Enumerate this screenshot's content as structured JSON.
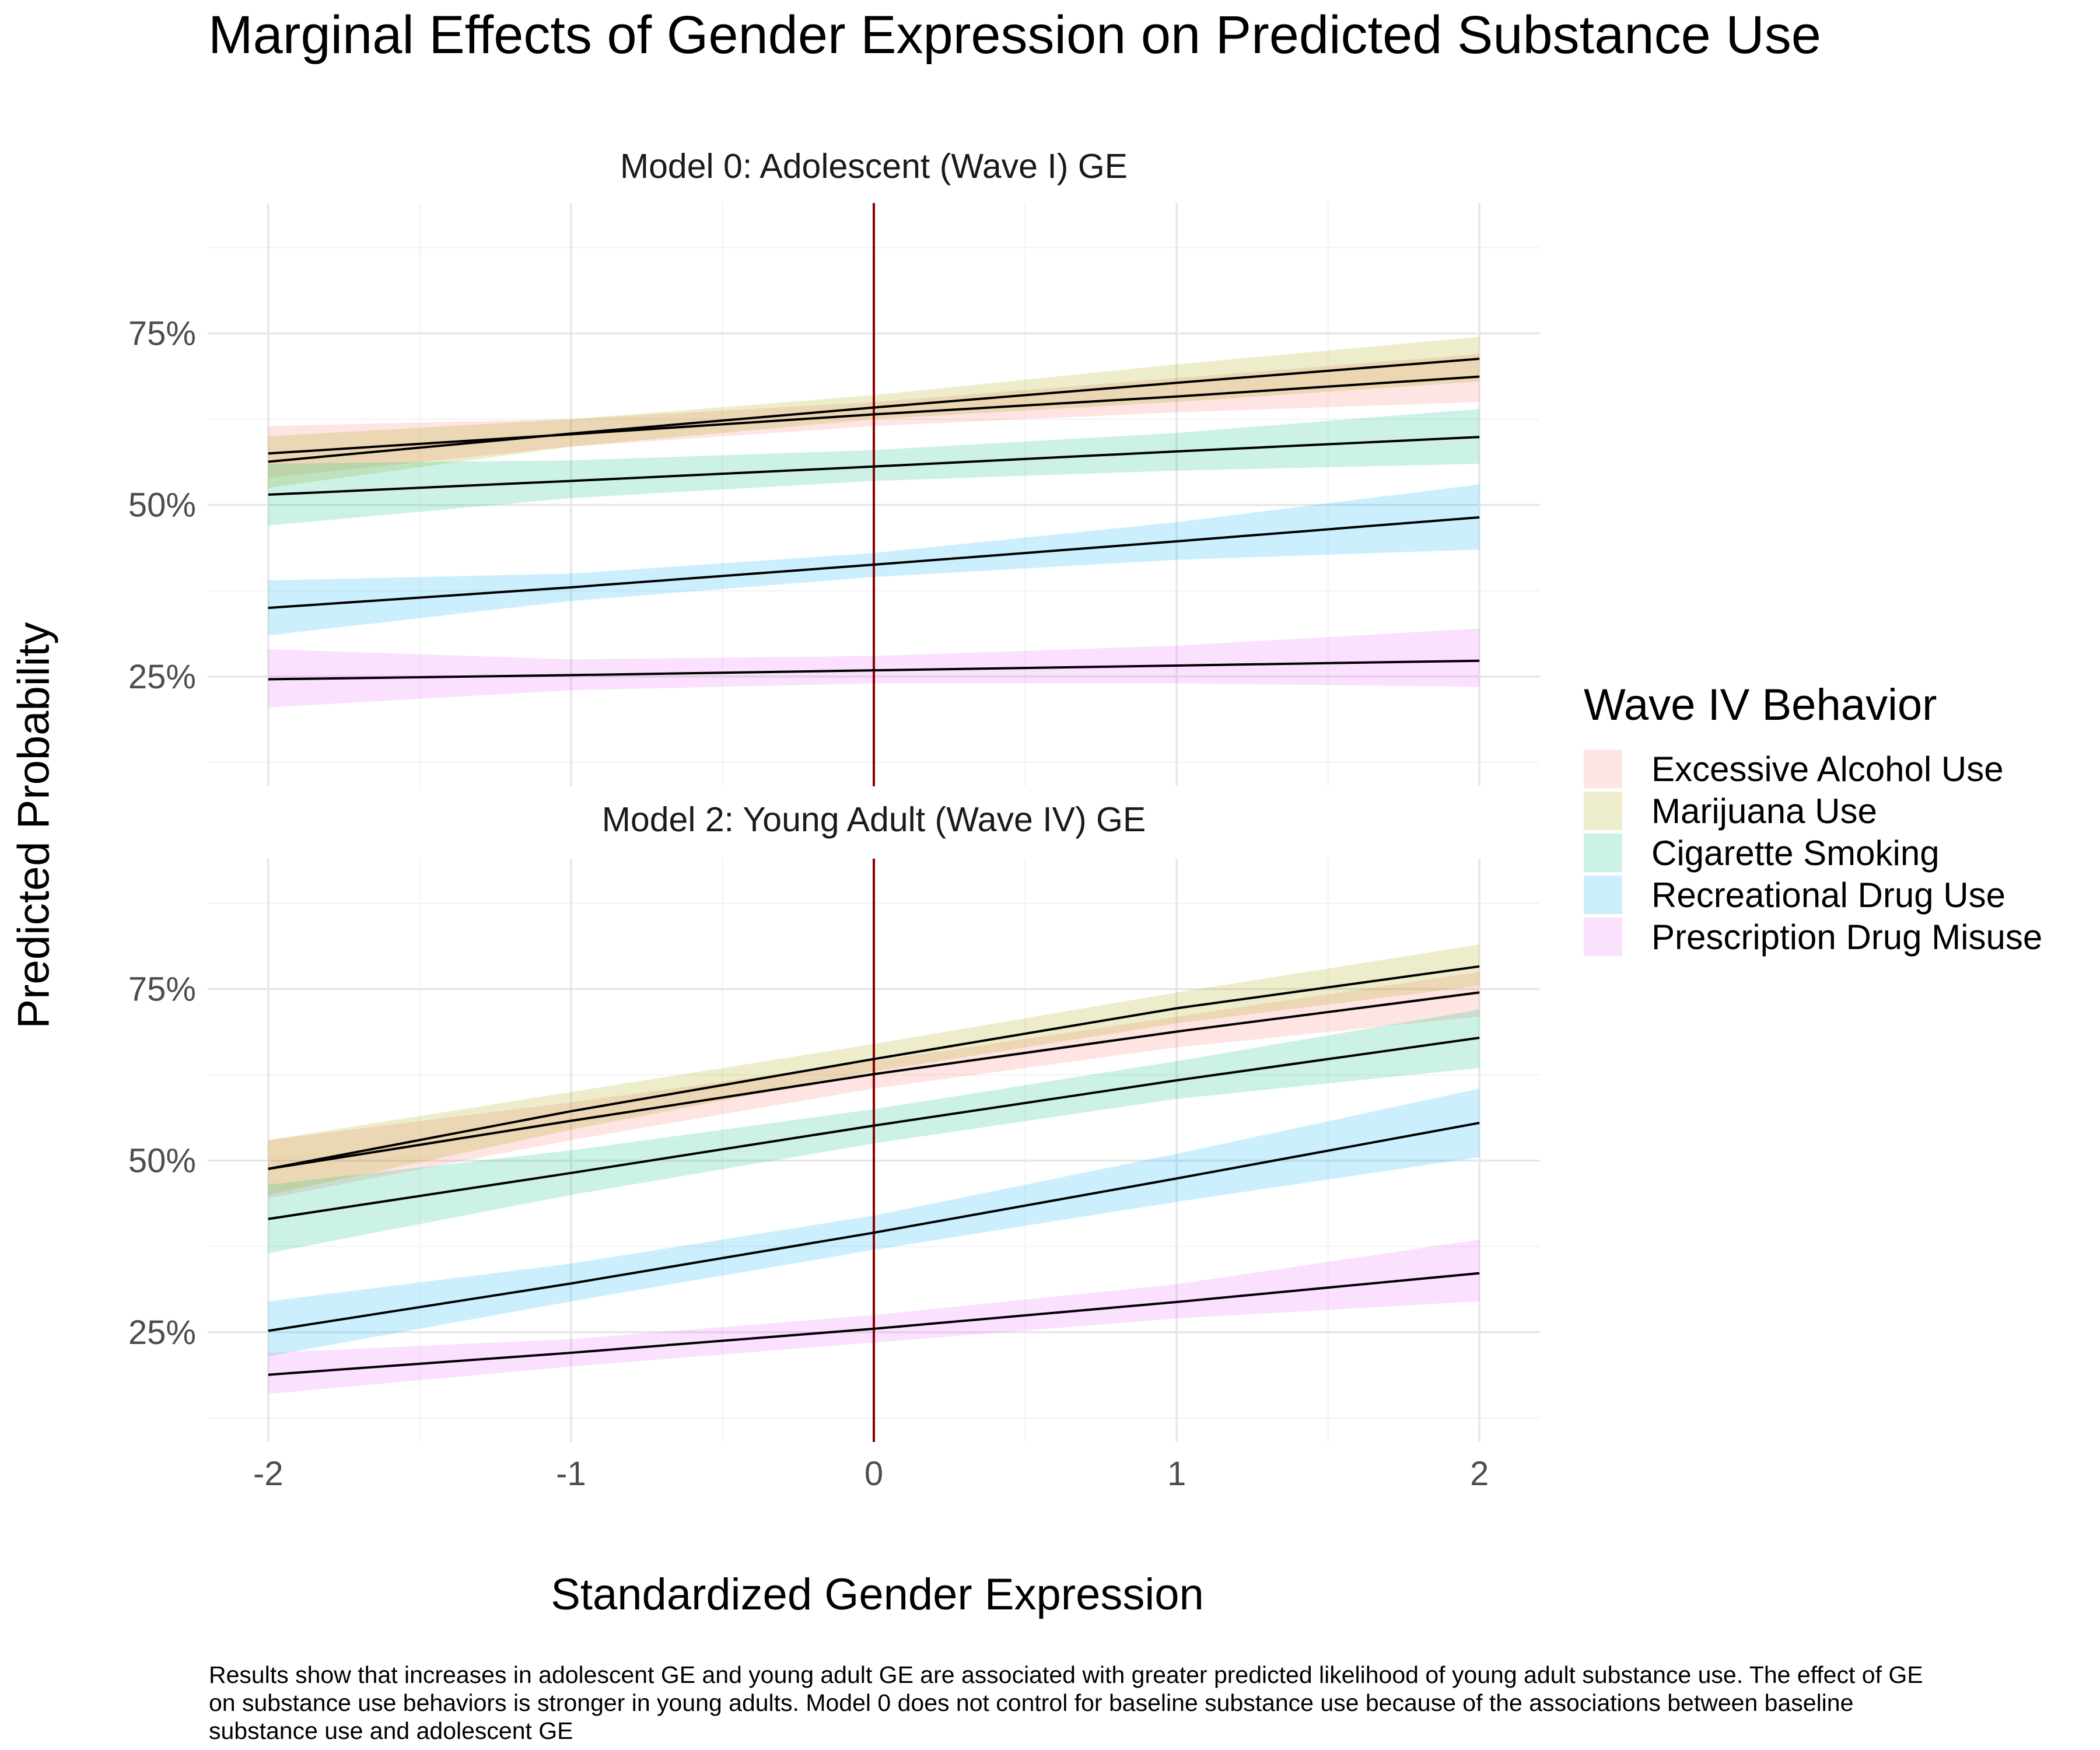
{
  "chart_data": {
    "type": "line",
    "title": "Marginal Effects of Gender Expression on Predicted Substance Use",
    "xlabel": "Standardized Gender Expression",
    "ylabel": "Predicted Probability",
    "xlim": [
      -2.2,
      2.2
    ],
    "ylim": [
      0.09,
      0.94
    ],
    "x_ticks": [
      -2,
      -1,
      0,
      1,
      2
    ],
    "x_tick_labels": [
      "-2",
      "-1",
      "0",
      "1",
      "2"
    ],
    "y_ticks": [
      0.25,
      0.5,
      0.75
    ],
    "y_tick_labels": [
      "25%",
      "50%",
      "75%"
    ],
    "reference_line_x": 0,
    "reference_line_color": "#8b0000",
    "grid": true,
    "legend_title": "Wave IV Behavior",
    "legend_position": "right",
    "caption": "Results show that increases in adolescent GE and young adult GE are associated with greater predicted likelihood of young adult substance use. The effect of GE on substance use behaviors is stronger in young adults. Model 0 does not control for baseline substance use because of the associations between baseline substance use and adolescent GE",
    "behaviors": [
      {
        "name": "Excessive Alcohol Use",
        "color": "#f8766d"
      },
      {
        "name": "Marijuana Use",
        "color": "#a3a500"
      },
      {
        "name": "Cigarette Smoking",
        "color": "#00bf7d"
      },
      {
        "name": "Recreational Drug Use",
        "color": "#00b0f6"
      },
      {
        "name": "Prescription Drug Misuse",
        "color": "#e76bf3"
      }
    ],
    "panels": [
      {
        "title": "Model 0: Adolescent (Wave I) GE",
        "x": [
          -2,
          -1,
          0,
          1,
          2
        ],
        "series": [
          {
            "name": "Excessive Alcohol Use",
            "values": [
              0.575,
              0.603,
              0.632,
              0.658,
              0.687
            ],
            "lower": [
              0.54,
              0.585,
              0.615,
              0.635,
              0.65
            ],
            "upper": [
              0.615,
              0.625,
              0.65,
              0.685,
              0.72
            ]
          },
          {
            "name": "Marijuana Use",
            "values": [
              0.563,
              0.604,
              0.642,
              0.678,
              0.713
            ],
            "lower": [
              0.525,
              0.585,
              0.625,
              0.65,
              0.68
            ],
            "upper": [
              0.6,
              0.625,
              0.66,
              0.705,
              0.745
            ]
          },
          {
            "name": "Cigarette Smoking",
            "values": [
              0.515,
              0.535,
              0.556,
              0.578,
              0.599
            ],
            "lower": [
              0.47,
              0.51,
              0.535,
              0.55,
              0.56
            ],
            "upper": [
              0.56,
              0.565,
              0.58,
              0.605,
              0.64
            ]
          },
          {
            "name": "Recreational Drug Use",
            "values": [
              0.35,
              0.38,
              0.413,
              0.447,
              0.482
            ],
            "lower": [
              0.31,
              0.36,
              0.395,
              0.42,
              0.435
            ],
            "upper": [
              0.39,
              0.4,
              0.43,
              0.475,
              0.53
            ]
          },
          {
            "name": "Prescription Drug Misuse",
            "values": [
              0.246,
              0.252,
              0.259,
              0.266,
              0.273
            ],
            "lower": [
              0.205,
              0.23,
              0.24,
              0.24,
              0.235
            ],
            "upper": [
              0.29,
              0.275,
              0.28,
              0.295,
              0.32
            ]
          }
        ]
      },
      {
        "title": "Model 2: Young Adult (Wave IV) GE",
        "x": [
          -2,
          -1,
          0,
          1,
          2
        ],
        "series": [
          {
            "name": "Excessive Alcohol Use",
            "values": [
              0.488,
              0.558,
              0.626,
              0.688,
              0.745
            ],
            "lower": [
              0.445,
              0.53,
              0.605,
              0.665,
              0.71
            ],
            "upper": [
              0.53,
              0.585,
              0.645,
              0.71,
              0.775
            ]
          },
          {
            "name": "Marijuana Use",
            "values": [
              0.488,
              0.572,
              0.648,
              0.722,
              0.783
            ],
            "lower": [
              0.45,
              0.545,
              0.63,
              0.7,
              0.755
            ],
            "upper": [
              0.53,
              0.6,
              0.67,
              0.745,
              0.815
            ]
          },
          {
            "name": "Cigarette Smoking",
            "values": [
              0.415,
              0.482,
              0.551,
              0.617,
              0.679
            ],
            "lower": [
              0.365,
              0.45,
              0.525,
              0.59,
              0.635
            ],
            "upper": [
              0.465,
              0.515,
              0.575,
              0.645,
              0.72
            ]
          },
          {
            "name": "Recreational Drug Use",
            "values": [
              0.252,
              0.321,
              0.395,
              0.474,
              0.555
            ],
            "lower": [
              0.215,
              0.295,
              0.37,
              0.44,
              0.505
            ],
            "upper": [
              0.295,
              0.35,
              0.42,
              0.51,
              0.605
            ]
          },
          {
            "name": "Prescription Drug Misuse",
            "values": [
              0.188,
              0.22,
              0.255,
              0.294,
              0.336
            ],
            "lower": [
              0.16,
              0.2,
              0.235,
              0.27,
              0.295
            ],
            "upper": [
              0.22,
              0.24,
              0.275,
              0.32,
              0.385
            ]
          }
        ]
      }
    ]
  }
}
